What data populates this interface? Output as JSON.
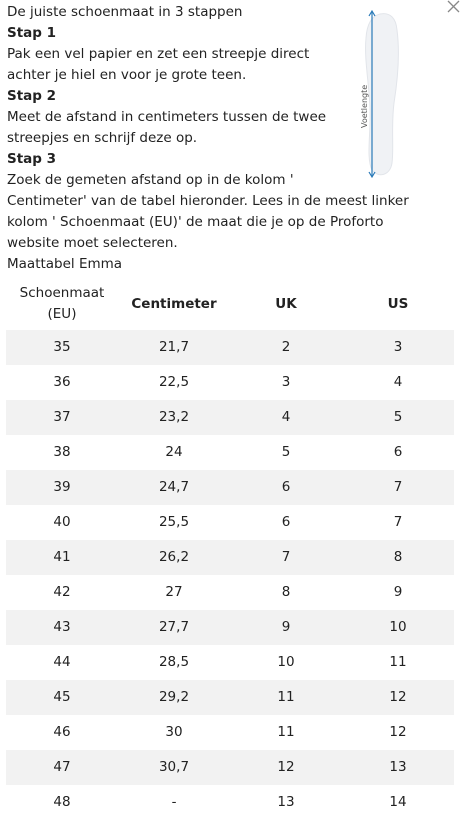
{
  "header": {
    "title": "De juiste schoenmaat in 3 stappen"
  },
  "illustration": {
    "label": "Voetlengte"
  },
  "steps": [
    {
      "heading": "Stap 1",
      "text": "Pak een vel papier en zet een streepje direct achter je hiel en voor je grote teen."
    },
    {
      "heading": "Stap 2",
      "text": "Meet de afstand in centimeters tussen de twee streepjes en schrijf deze op."
    },
    {
      "heading": "Stap 3",
      "text": "Zoek de gemeten afstand op in de kolom ' Centimeter' van de tabel hieronder. Lees in de meest linker kolom ' Schoenmaat (EU)' de maat die je op de Proforto website moet selecteren."
    }
  ],
  "table": {
    "title": "Maattabel Emma",
    "columns": [
      "Schoenmaat (EU)",
      "Centimeter",
      "UK",
      "US"
    ],
    "rows": [
      [
        "35",
        "21,7",
        "2",
        "3"
      ],
      [
        "36",
        "22,5",
        "3",
        "4"
      ],
      [
        "37",
        "23,2",
        "4",
        "5"
      ],
      [
        "38",
        "24",
        "5",
        "6"
      ],
      [
        "39",
        "24,7",
        "6",
        "7"
      ],
      [
        "40",
        "25,5",
        "6",
        "7"
      ],
      [
        "41",
        "26,2",
        "7",
        "8"
      ],
      [
        "42",
        "27",
        "8",
        "9"
      ],
      [
        "43",
        "27,7",
        "9",
        "10"
      ],
      [
        "44",
        "28,5",
        "10",
        "11"
      ],
      [
        "45",
        "29,2",
        "11",
        "12"
      ],
      [
        "46",
        "30",
        "11",
        "12"
      ],
      [
        "47",
        "30,7",
        "12",
        "13"
      ],
      [
        "48",
        "-",
        "13",
        "14"
      ]
    ]
  }
}
